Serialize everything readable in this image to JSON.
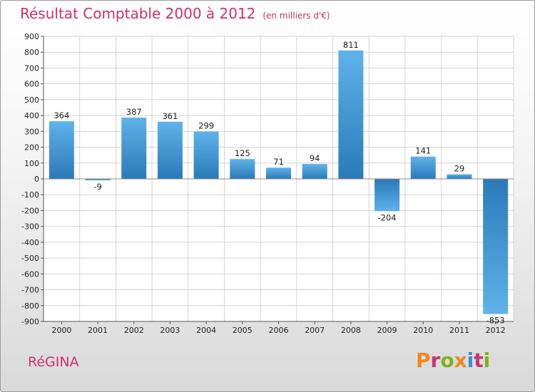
{
  "chart_data": {
    "type": "bar",
    "title": "Résultat Comptable 2000 à 2012",
    "subtitle": "(en milliers d'€)",
    "categories": [
      "2000",
      "2001",
      "2002",
      "2003",
      "2004",
      "2005",
      "2006",
      "2007",
      "2008",
      "2009",
      "2010",
      "2011",
      "2012"
    ],
    "values": [
      364,
      -9,
      387,
      361,
      299,
      125,
      71,
      94,
      811,
      -204,
      141,
      29,
      -853
    ],
    "value_labels": [
      "364",
      "-9",
      "387",
      "361",
      "299",
      "125",
      "71",
      "94",
      "811",
      "-204",
      "141",
      "29",
      "-853"
    ],
    "ylim": [
      -900,
      900
    ],
    "yticks": [
      900,
      800,
      700,
      600,
      500,
      400,
      300,
      200,
      100,
      0,
      -100,
      -200,
      -300,
      -400,
      -500,
      -600,
      -700,
      -800,
      -900
    ],
    "ytick_labels": [
      "900",
      "800",
      "700",
      "600",
      "500",
      "400",
      "300",
      "200",
      "100",
      "0",
      "-100",
      "-200",
      "-300",
      "-400",
      "-500",
      "-600",
      "-700",
      "-800",
      "-900"
    ],
    "grid": true,
    "xlabel": "",
    "ylabel": ""
  },
  "footer": {
    "town": "RéGINA",
    "brand": "Proxiti"
  },
  "colors": {
    "title": "#d0306d",
    "bar_dark": "#2a7ab8",
    "bar_light": "#5fb2ea",
    "logo_letters": [
      "#f08a1c",
      "#d0306d",
      "#7ab51d",
      "#f08a1c",
      "#3a8dd6",
      "#d0306d",
      "#7ab51d"
    ]
  }
}
